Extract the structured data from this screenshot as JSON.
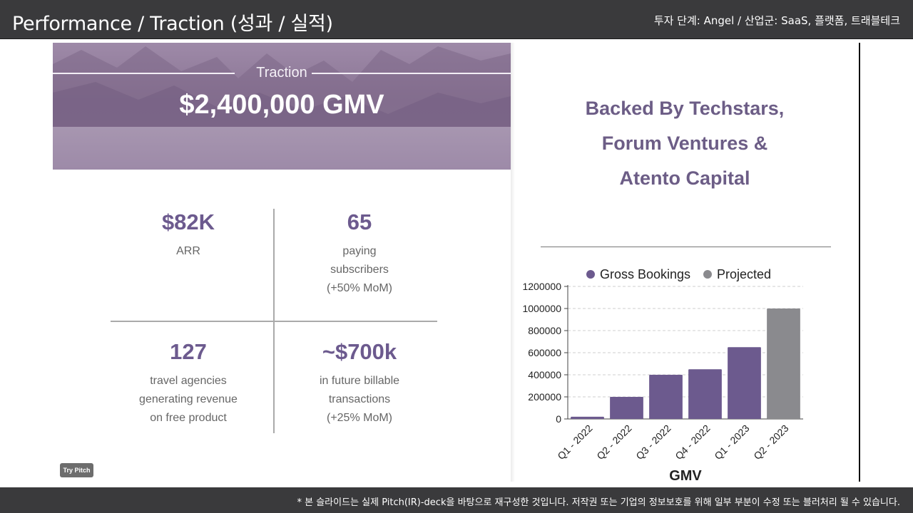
{
  "header": {
    "title": "Performance / Traction (성과 / 실적)",
    "meta": "투자 단계: Angel / 산업군: SaaS, 플랫폼, 트래블테크"
  },
  "footer": {
    "note": "* 본 슬라이드는 실제 Pitch(IR)-deck을 바탕으로 재구성한 것입니다. 저작권 또는 기업의 정보보호를 위해 일부 부분이 수정 또는 블러처리 될 수 있습니다."
  },
  "hero": {
    "label": "Traction",
    "value": "$2,400,000 GMV"
  },
  "stats": [
    {
      "value": "$82K",
      "lines": [
        "ARR"
      ]
    },
    {
      "value": "65",
      "lines": [
        "paying",
        "subscribers",
        "(+50% MoM)"
      ]
    },
    {
      "value": "127",
      "lines": [
        "travel agencies",
        "generating revenue",
        "on free product"
      ]
    },
    {
      "value": "~$700k",
      "lines": [
        "in future billable",
        "transactions",
        "(+25% MoM)"
      ]
    }
  ],
  "backed": {
    "lines": [
      "Backed By Techstars,",
      "Forum Ventures &",
      "Atento Capital"
    ]
  },
  "try_button": "Try Pitch",
  "colors": {
    "accent": "#6c5a8e",
    "projected": "#8a8a8e"
  },
  "chart_data": {
    "type": "bar",
    "categories": [
      "Q1 - 2022",
      "Q2 - 2022",
      "Q3 - 2022",
      "Q4 - 2022",
      "Q1 - 2023",
      "Q2 - 2023"
    ],
    "series": [
      {
        "name": "Gross Bookings",
        "values": [
          20000,
          200000,
          400000,
          450000,
          650000,
          null
        ]
      },
      {
        "name": "Projected",
        "values": [
          null,
          null,
          null,
          null,
          null,
          1000000
        ]
      }
    ],
    "yticks": [
      0,
      200000,
      400000,
      600000,
      800000,
      1000000,
      1200000
    ],
    "ylim": [
      0,
      1200000
    ],
    "xlabel": "GMV",
    "ylabel": "",
    "legend": "top",
    "grid": true
  }
}
